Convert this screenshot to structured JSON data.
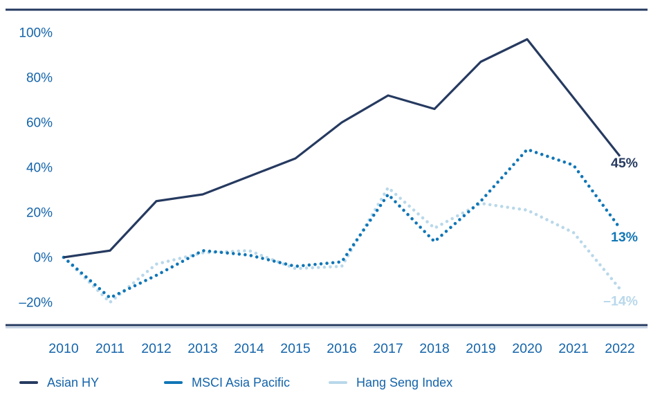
{
  "chart_data": {
    "type": "line",
    "title": "",
    "xlabel": "",
    "ylabel": "",
    "x": [
      "2010",
      "2011",
      "2012",
      "2013",
      "2014",
      "2015",
      "2016",
      "2017",
      "2018",
      "2019",
      "2020",
      "2021",
      "2022"
    ],
    "series": [
      {
        "name": "Asian HY",
        "style": "solid",
        "color": "#263a60",
        "values": [
          0,
          3,
          25,
          28,
          36,
          44,
          60,
          72,
          66,
          87,
          97,
          71,
          45
        ],
        "end_label": "45%"
      },
      {
        "name": "MSCI Asia Pacific",
        "style": "dotted",
        "color": "#1176b6",
        "values": [
          0,
          -18,
          -8,
          3,
          1,
          -4,
          -2,
          28,
          7,
          25,
          48,
          41,
          13
        ],
        "end_label": "13%"
      },
      {
        "name": "Hang Seng Index",
        "style": "dotted",
        "color": "#b9d8ea",
        "values": [
          0,
          -20,
          -3,
          2,
          3,
          -5,
          -4,
          31,
          13,
          24,
          21,
          11,
          -14
        ],
        "end_label": "–14%"
      }
    ],
    "y_ticks": [
      {
        "label": "100%",
        "value": 100
      },
      {
        "label": "80%",
        "value": 80
      },
      {
        "label": "60%",
        "value": 60
      },
      {
        "label": "40%",
        "value": 40
      },
      {
        "label": "20%",
        "value": 20
      },
      {
        "label": "0%",
        "value": 0
      },
      {
        "label": "–20%",
        "value": -20
      }
    ],
    "ylim": [
      -20,
      100
    ],
    "grid": false,
    "legend_position": "bottom",
    "axis_label_color": "#1464aa",
    "frame_color": "#263a60",
    "frame_light_color": "#b9cade",
    "background_color": "#ffffff"
  }
}
